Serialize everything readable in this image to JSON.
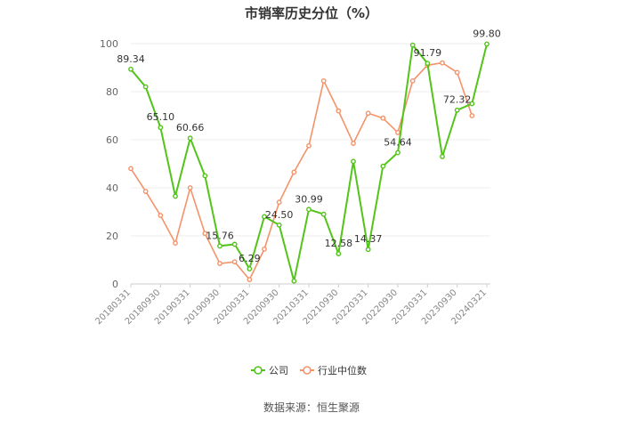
{
  "chart_data": {
    "type": "line",
    "title": "市销率历史分位（%）",
    "source": "数据来源：恒生聚源",
    "ylim": [
      0,
      100
    ],
    "yticks": [
      0,
      20,
      40,
      60,
      80,
      100
    ],
    "x": [
      "20180331",
      "20180630",
      "20180930",
      "20181231",
      "20190331",
      "20190630",
      "20190930",
      "20191231",
      "20200331",
      "20200630",
      "20200930",
      "20201231",
      "20210331",
      "20210630",
      "20210930",
      "20211231",
      "20220331",
      "20220630",
      "20220930",
      "20221231",
      "20230331",
      "20230630",
      "20230930",
      "20231231",
      "20240321"
    ],
    "xtick_labels": [
      "20180331",
      "20180930",
      "20190331",
      "20190930",
      "20200331",
      "20200930",
      "20210331",
      "20210930",
      "20220331",
      "20220930",
      "20230331",
      "20230930",
      "20240321"
    ],
    "grid": "horizontal",
    "legend_position": "bottom",
    "series": [
      {
        "name": "公司",
        "color": "#52c41a",
        "values": [
          89.34,
          82.0,
          65.1,
          36.5,
          60.66,
          45.0,
          15.76,
          16.5,
          6.29,
          28.0,
          24.5,
          1.2,
          30.99,
          29.0,
          12.58,
          51.0,
          14.37,
          49.0,
          54.64,
          99.4,
          91.79,
          53.0,
          72.32,
          75.0,
          99.8
        ]
      },
      {
        "name": "行业中位数",
        "color": "#f4936a",
        "values": [
          48.0,
          38.5,
          28.5,
          17.0,
          40.0,
          21.0,
          8.5,
          9.2,
          1.8,
          14.5,
          34.0,
          46.5,
          57.5,
          84.5,
          72.0,
          58.5,
          71.0,
          69.0,
          63.0,
          84.5,
          91.0,
          92.0,
          88.0,
          70.0,
          null
        ]
      }
    ],
    "data_labels": [
      {
        "index": 0,
        "text": "89.34"
      },
      {
        "index": 2,
        "text": "65.10"
      },
      {
        "index": 4,
        "text": "60.66"
      },
      {
        "index": 6,
        "text": "15.76"
      },
      {
        "index": 8,
        "text": "6.29"
      },
      {
        "index": 10,
        "text": "24.50"
      },
      {
        "index": 12,
        "text": "30.99"
      },
      {
        "index": 14,
        "text": "12.58"
      },
      {
        "index": 16,
        "text": "14.37"
      },
      {
        "index": 18,
        "text": "54.64"
      },
      {
        "index": 20,
        "text": "91.79"
      },
      {
        "index": 22,
        "text": "72.32"
      },
      {
        "index": 24,
        "text": "99.80"
      }
    ]
  }
}
